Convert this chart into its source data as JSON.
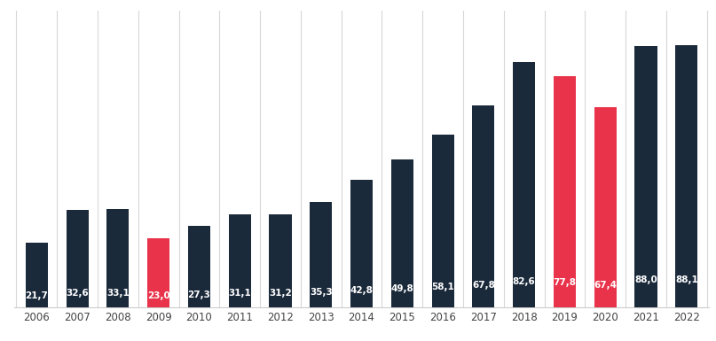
{
  "years": [
    "2006",
    "2007",
    "2008",
    "2009",
    "2010",
    "2011",
    "2012",
    "2013",
    "2014",
    "2015",
    "2016",
    "2017",
    "2018",
    "2019",
    "2020",
    "2021",
    "2022"
  ],
  "values": [
    21.7,
    32.6,
    33.1,
    23.0,
    27.3,
    31.1,
    31.2,
    35.3,
    42.8,
    49.8,
    58.1,
    67.8,
    82.6,
    77.8,
    67.4,
    88.0,
    88.1
  ],
  "labels": [
    "21,7",
    "32,6",
    "33,1",
    "23,0",
    "27,3",
    "31,1",
    "31,2",
    "35,3",
    "42,8",
    "49,8",
    "58,1",
    "67,8",
    "82,6",
    "77,8",
    "67,4",
    "88,0",
    "88,1"
  ],
  "colors": [
    "#1b2a3b",
    "#1b2a3b",
    "#1b2a3b",
    "#e8334a",
    "#1b2a3b",
    "#1b2a3b",
    "#1b2a3b",
    "#1b2a3b",
    "#1b2a3b",
    "#1b2a3b",
    "#1b2a3b",
    "#1b2a3b",
    "#1b2a3b",
    "#e8334a",
    "#e8334a",
    "#1b2a3b",
    "#1b2a3b"
  ],
  "background_color": "#ffffff",
  "grid_color": "#d8d8d8",
  "text_color": "#ffffff",
  "label_fontsize": 7.5,
  "tick_fontsize": 8.5,
  "bar_width": 0.55,
  "ylim": [
    0,
    100
  ],
  "figsize": [
    8.07,
    3.85
  ],
  "dpi": 100
}
